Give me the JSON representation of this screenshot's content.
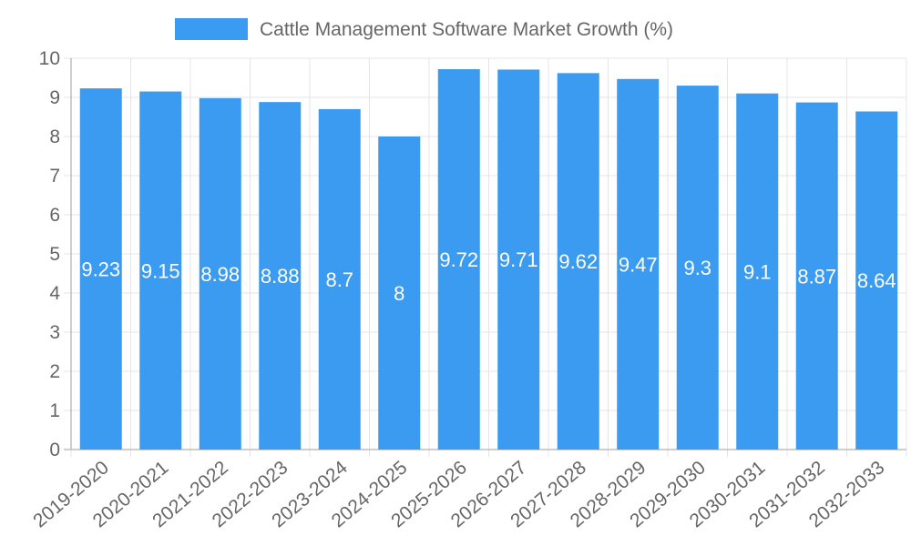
{
  "chart_data": {
    "type": "bar",
    "categories": [
      "2019-2020",
      "2020-2021",
      "2021-2022",
      "2022-2023",
      "2023-2024",
      "2024-2025",
      "2025-2026",
      "2026-2027",
      "2027-2028",
      "2028-2029",
      "2029-2030",
      "2030-2031",
      "2031-2032",
      "2032-2033"
    ],
    "series": [
      {
        "name": "Cattle Management Software Market Growth (%)",
        "values": [
          9.23,
          9.15,
          8.98,
          8.88,
          8.7,
          8,
          9.72,
          9.71,
          9.62,
          9.47,
          9.3,
          9.1,
          8.87,
          8.64
        ],
        "color": "#3a9bf0"
      }
    ],
    "ylim": [
      0,
      10
    ],
    "yticks": [
      0,
      1,
      2,
      3,
      4,
      5,
      6,
      7,
      8,
      9,
      10
    ],
    "grid": true,
    "legend": "top-center",
    "data_labels": true
  }
}
